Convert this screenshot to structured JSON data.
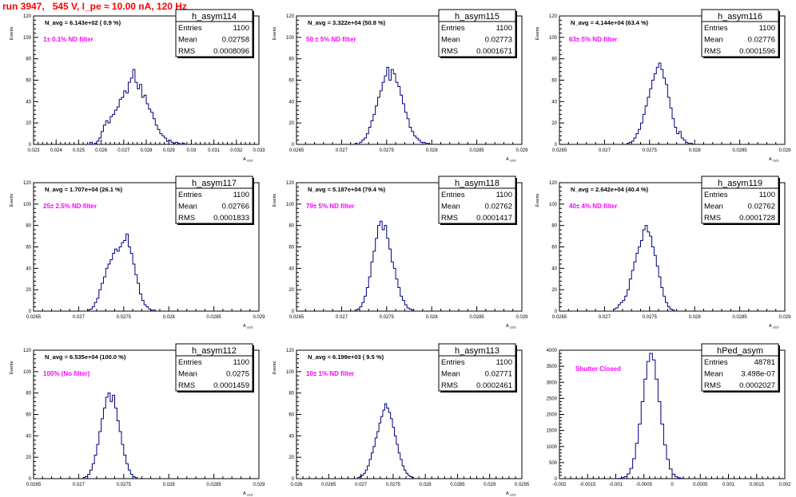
{
  "run_title": "run 3947,   545 V, I_pe ≈ 10.00 nA, 120 Hz",
  "colors": {
    "histogram": "#000080",
    "annotation": "#ff00ff",
    "title": "#ff0000",
    "axis": "#000000"
  },
  "stat_labels": {
    "entries": "Entries",
    "mean": "Mean",
    "rms": "RMS"
  },
  "chart_data": [
    {
      "type": "bar",
      "name": "h_asym114",
      "ylabel": "Events",
      "xlabel": "A_LED",
      "xlim": [
        0.023,
        0.033
      ],
      "ylim": [
        0,
        120
      ],
      "xticks": [
        "0.023",
        "0.024",
        "0.025",
        "0.026",
        "0.027",
        "0.028",
        "0.029",
        "0.03",
        "0.031",
        "0.032",
        "0.033"
      ],
      "yticks": [
        "0",
        "20",
        "40",
        "60",
        "80",
        "100",
        "120"
      ],
      "annotation": "N_avg = 6.143e+02 ( 0.9 %)",
      "filter_label": "1± 0.1% ND filter",
      "stats": {
        "entries": "1100",
        "mean": "0.02758",
        "rms": "0.0008096"
      },
      "bins": {
        "start": 0.0255,
        "width": 0.0001,
        "values": [
          2,
          0,
          1,
          3,
          6,
          12,
          18,
          22,
          20,
          26,
          28,
          32,
          35,
          42,
          44,
          50,
          48,
          58,
          62,
          70,
          58,
          52,
          56,
          44,
          46,
          38,
          33,
          30,
          24,
          18,
          14,
          10,
          8,
          6,
          3,
          4,
          2,
          1,
          2,
          1,
          0,
          1
        ]
      }
    },
    {
      "type": "bar",
      "name": "h_asym115",
      "ylabel": "Events",
      "xlabel": "A_LED",
      "xlim": [
        0.0265,
        0.029
      ],
      "ylim": [
        0,
        120
      ],
      "xticks": [
        "0.0265",
        "0.027",
        "0.0275",
        "0.028",
        "0.0285",
        "0.029"
      ],
      "yticks": [
        "0",
        "20",
        "40",
        "60",
        "80",
        "100",
        "120"
      ],
      "annotation": "N_avg = 3.322e+04 (50.8 %)",
      "filter_label": "50 ± 5% ND filter",
      "stats": {
        "entries": "1100",
        "mean": "0.02773",
        "rms": "0.0001671"
      },
      "bins": {
        "start": 0.02715,
        "width": 2.5e-05,
        "values": [
          1,
          0,
          2,
          4,
          6,
          10,
          16,
          22,
          28,
          36,
          44,
          50,
          58,
          64,
          72,
          60,
          70,
          66,
          58,
          54,
          46,
          38,
          30,
          24,
          16,
          12,
          8,
          6,
          4,
          2,
          2,
          1,
          1
        ]
      }
    },
    {
      "type": "bar",
      "name": "h_asym116",
      "ylabel": "Events",
      "xlabel": "A_LED",
      "xlim": [
        0.0265,
        0.029
      ],
      "ylim": [
        0,
        120
      ],
      "xticks": [
        "0.0265",
        "0.027",
        "0.0275",
        "0.028",
        "0.0285",
        "0.029"
      ],
      "yticks": [
        "0",
        "20",
        "40",
        "60",
        "80",
        "100",
        "120"
      ],
      "annotation": "N_avg = 4.144e+04 (63.4 %)",
      "filter_label": "63± 5% ND filter",
      "stats": {
        "entries": "1100",
        "mean": "0.02776",
        "rms": "0.0001596"
      },
      "bins": {
        "start": 0.02725,
        "width": 2.5e-05,
        "values": [
          1,
          2,
          3,
          6,
          10,
          14,
          20,
          28,
          36,
          44,
          52,
          60,
          66,
          72,
          76,
          70,
          62,
          56,
          44,
          34,
          24,
          16,
          10,
          12,
          6,
          4,
          2,
          1,
          1
        ]
      }
    },
    {
      "type": "bar",
      "name": "h_asym117",
      "ylabel": "Events",
      "xlabel": "A_LED",
      "xlim": [
        0.0265,
        0.029
      ],
      "ylim": [
        0,
        120
      ],
      "xticks": [
        "0.0265",
        "0.027",
        "0.0275",
        "0.028",
        "0.0285",
        "0.029"
      ],
      "yticks": [
        "0",
        "20",
        "40",
        "60",
        "80",
        "100",
        "120"
      ],
      "annotation": "N_avg = 1.707e+04 (26.1 %)",
      "filter_label": "25± 2.5% ND filter",
      "stats": {
        "entries": "1100",
        "mean": "0.02766",
        "rms": "0.0001833"
      },
      "bins": {
        "start": 0.0271,
        "width": 2.5e-05,
        "values": [
          1,
          2,
          4,
          8,
          12,
          20,
          26,
          32,
          40,
          44,
          48,
          54,
          58,
          56,
          60,
          64,
          66,
          72,
          60,
          54,
          44,
          34,
          26,
          16,
          10,
          6,
          4,
          2,
          1,
          1
        ]
      }
    },
    {
      "type": "bar",
      "name": "h_asym118",
      "ylabel": "Events",
      "xlabel": "A_LED",
      "xlim": [
        0.0265,
        0.029
      ],
      "ylim": [
        0,
        120
      ],
      "xticks": [
        "0.0265",
        "0.027",
        "0.0275",
        "0.028",
        "0.0285",
        "0.029"
      ],
      "yticks": [
        "0",
        "20",
        "40",
        "60",
        "80",
        "100",
        "120"
      ],
      "annotation": "N_avg = 5.187e+04 (79.4 %)",
      "filter_label": "79± 5% ND filter",
      "stats": {
        "entries": "1100",
        "mean": "0.02762",
        "rms": "0.0001417"
      },
      "bins": {
        "start": 0.02715,
        "width": 2.5e-05,
        "values": [
          1,
          2,
          4,
          8,
          14,
          22,
          32,
          46,
          56,
          68,
          80,
          84,
          76,
          80,
          68,
          58,
          46,
          40,
          30,
          22,
          14,
          10,
          6,
          3,
          2,
          1
        ]
      }
    },
    {
      "type": "bar",
      "name": "h_asym119",
      "ylabel": "Events",
      "xlabel": "A_LED",
      "xlim": [
        0.0265,
        0.029
      ],
      "ylim": [
        0,
        120
      ],
      "xticks": [
        "0.0265",
        "0.027",
        "0.0275",
        "0.028",
        "0.0285",
        "0.029"
      ],
      "yticks": [
        "0",
        "20",
        "40",
        "60",
        "80",
        "100",
        "120"
      ],
      "annotation": "N_avg = 2.642e+04 (40.4 %)",
      "filter_label": "40± 4% ND filter",
      "stats": {
        "entries": "1100",
        "mean": "0.02762",
        "rms": "0.0001728"
      },
      "bins": {
        "start": 0.0271,
        "width": 2.5e-05,
        "values": [
          2,
          3,
          6,
          8,
          10,
          14,
          20,
          30,
          38,
          46,
          54,
          60,
          66,
          76,
          80,
          74,
          70,
          60,
          52,
          42,
          32,
          22,
          14,
          8,
          4,
          2,
          1
        ]
      }
    },
    {
      "type": "bar",
      "name": "h_asym112",
      "ylabel": "Events",
      "xlabel": "A_LED",
      "xlim": [
        0.0265,
        0.029
      ],
      "ylim": [
        0,
        120
      ],
      "xticks": [
        "0.0265",
        "0.027",
        "0.0275",
        "0.028",
        "0.0285",
        "0.029"
      ],
      "yticks": [
        "0",
        "20",
        "40",
        "60",
        "80",
        "100",
        "120"
      ],
      "annotation": "N_avg = 6.535e+04 (100.0 %)",
      "filter_label": "100% (No filter)",
      "stats": {
        "entries": "1100",
        "mean": "0.0275",
        "rms": "0.0001459"
      },
      "bins": {
        "start": 0.02705,
        "width": 2.5e-05,
        "values": [
          1,
          2,
          4,
          8,
          14,
          22,
          32,
          44,
          56,
          66,
          76,
          80,
          72,
          78,
          66,
          54,
          44,
          32,
          22,
          14,
          8,
          4,
          2,
          1
        ]
      }
    },
    {
      "type": "bar",
      "name": "h_asym113",
      "ylabel": "Events",
      "xlabel": "A_LED",
      "xlim": [
        0.026,
        0.0295
      ],
      "ylim": [
        0,
        120
      ],
      "xticks": [
        "0.026",
        "0.0265",
        "0.027",
        "0.0275",
        "0.028",
        "0.0285",
        "0.029",
        "0.0295"
      ],
      "yticks": [
        "0",
        "20",
        "40",
        "60",
        "80",
        "100",
        "120"
      ],
      "annotation": "N_avg = 6.199e+03 ( 9.5 %)",
      "filter_label": "10± 1% ND filter",
      "stats": {
        "entries": "1100",
        "mean": "0.02771",
        "rms": "0.0002461"
      },
      "bins": {
        "start": 0.02695,
        "width": 3e-05,
        "values": [
          1,
          2,
          3,
          5,
          8,
          12,
          18,
          24,
          30,
          38,
          44,
          52,
          58,
          64,
          70,
          66,
          62,
          56,
          48,
          40,
          32,
          24,
          18,
          12,
          8,
          5,
          3,
          2,
          1
        ]
      }
    },
    {
      "type": "bar",
      "name": "hPed_asym",
      "ylabel": "",
      "xlabel": "",
      "xlim": [
        -0.002,
        0.002
      ],
      "ylim": [
        0,
        4000
      ],
      "xticks": [
        "-0.002",
        "-0.0015",
        "-0.001",
        "-0.0005",
        "0",
        "0.0005",
        "0.001",
        "0.0015",
        "0.002"
      ],
      "yticks": [
        "0",
        "500",
        "1000",
        "1500",
        "2000",
        "2500",
        "3000",
        "3500",
        "4000"
      ],
      "annotation": "",
      "filter_label": "Shutter Closed",
      "stats": {
        "entries": "48781",
        "mean": "3.498e-07",
        "rms": "0.0002027"
      },
      "bins": {
        "start": -0.00095,
        "width": 5e-05,
        "values": [
          10,
          30,
          60,
          150,
          320,
          620,
          1100,
          1700,
          2400,
          3100,
          3650,
          3900,
          3700,
          3100,
          2400,
          1700,
          1050,
          600,
          300,
          140,
          60,
          25,
          10
        ]
      }
    }
  ]
}
